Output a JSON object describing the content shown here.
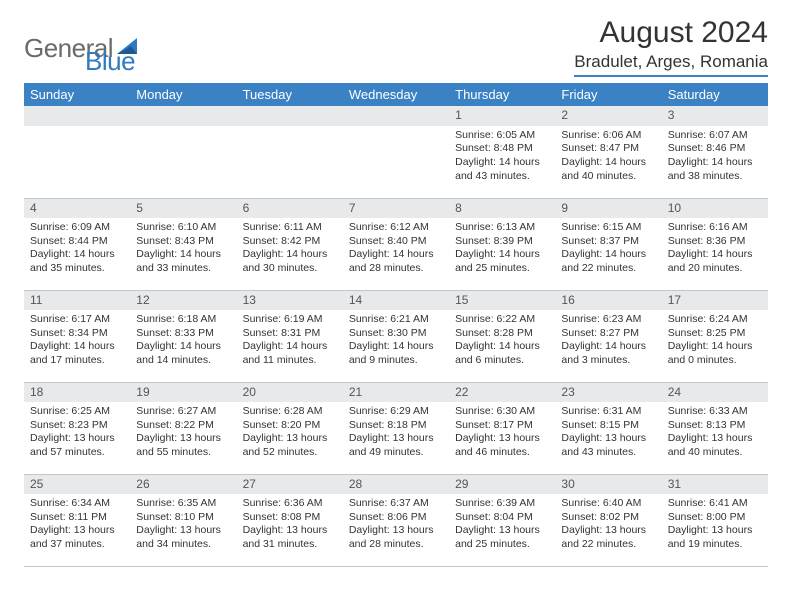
{
  "brand": {
    "part1": "General",
    "part2": "Blue"
  },
  "title": "August 2024",
  "location": "Bradulet, Arges, Romania",
  "colors": {
    "header_bg": "#3b82c4",
    "header_text": "#ffffff",
    "daynum_bg": "#e8e9eb",
    "text": "#333333",
    "logo_gray": "#6a6a6a",
    "logo_blue": "#2f7bbf"
  },
  "daysOfWeek": [
    "Sunday",
    "Monday",
    "Tuesday",
    "Wednesday",
    "Thursday",
    "Friday",
    "Saturday"
  ],
  "weeks": [
    [
      null,
      null,
      null,
      null,
      {
        "n": "1",
        "sr": "Sunrise: 6:05 AM",
        "ss": "Sunset: 8:48 PM",
        "dl": "Daylight: 14 hours and 43 minutes."
      },
      {
        "n": "2",
        "sr": "Sunrise: 6:06 AM",
        "ss": "Sunset: 8:47 PM",
        "dl": "Daylight: 14 hours and 40 minutes."
      },
      {
        "n": "3",
        "sr": "Sunrise: 6:07 AM",
        "ss": "Sunset: 8:46 PM",
        "dl": "Daylight: 14 hours and 38 minutes."
      }
    ],
    [
      {
        "n": "4",
        "sr": "Sunrise: 6:09 AM",
        "ss": "Sunset: 8:44 PM",
        "dl": "Daylight: 14 hours and 35 minutes."
      },
      {
        "n": "5",
        "sr": "Sunrise: 6:10 AM",
        "ss": "Sunset: 8:43 PM",
        "dl": "Daylight: 14 hours and 33 minutes."
      },
      {
        "n": "6",
        "sr": "Sunrise: 6:11 AM",
        "ss": "Sunset: 8:42 PM",
        "dl": "Daylight: 14 hours and 30 minutes."
      },
      {
        "n": "7",
        "sr": "Sunrise: 6:12 AM",
        "ss": "Sunset: 8:40 PM",
        "dl": "Daylight: 14 hours and 28 minutes."
      },
      {
        "n": "8",
        "sr": "Sunrise: 6:13 AM",
        "ss": "Sunset: 8:39 PM",
        "dl": "Daylight: 14 hours and 25 minutes."
      },
      {
        "n": "9",
        "sr": "Sunrise: 6:15 AM",
        "ss": "Sunset: 8:37 PM",
        "dl": "Daylight: 14 hours and 22 minutes."
      },
      {
        "n": "10",
        "sr": "Sunrise: 6:16 AM",
        "ss": "Sunset: 8:36 PM",
        "dl": "Daylight: 14 hours and 20 minutes."
      }
    ],
    [
      {
        "n": "11",
        "sr": "Sunrise: 6:17 AM",
        "ss": "Sunset: 8:34 PM",
        "dl": "Daylight: 14 hours and 17 minutes."
      },
      {
        "n": "12",
        "sr": "Sunrise: 6:18 AM",
        "ss": "Sunset: 8:33 PM",
        "dl": "Daylight: 14 hours and 14 minutes."
      },
      {
        "n": "13",
        "sr": "Sunrise: 6:19 AM",
        "ss": "Sunset: 8:31 PM",
        "dl": "Daylight: 14 hours and 11 minutes."
      },
      {
        "n": "14",
        "sr": "Sunrise: 6:21 AM",
        "ss": "Sunset: 8:30 PM",
        "dl": "Daylight: 14 hours and 9 minutes."
      },
      {
        "n": "15",
        "sr": "Sunrise: 6:22 AM",
        "ss": "Sunset: 8:28 PM",
        "dl": "Daylight: 14 hours and 6 minutes."
      },
      {
        "n": "16",
        "sr": "Sunrise: 6:23 AM",
        "ss": "Sunset: 8:27 PM",
        "dl": "Daylight: 14 hours and 3 minutes."
      },
      {
        "n": "17",
        "sr": "Sunrise: 6:24 AM",
        "ss": "Sunset: 8:25 PM",
        "dl": "Daylight: 14 hours and 0 minutes."
      }
    ],
    [
      {
        "n": "18",
        "sr": "Sunrise: 6:25 AM",
        "ss": "Sunset: 8:23 PM",
        "dl": "Daylight: 13 hours and 57 minutes."
      },
      {
        "n": "19",
        "sr": "Sunrise: 6:27 AM",
        "ss": "Sunset: 8:22 PM",
        "dl": "Daylight: 13 hours and 55 minutes."
      },
      {
        "n": "20",
        "sr": "Sunrise: 6:28 AM",
        "ss": "Sunset: 8:20 PM",
        "dl": "Daylight: 13 hours and 52 minutes."
      },
      {
        "n": "21",
        "sr": "Sunrise: 6:29 AM",
        "ss": "Sunset: 8:18 PM",
        "dl": "Daylight: 13 hours and 49 minutes."
      },
      {
        "n": "22",
        "sr": "Sunrise: 6:30 AM",
        "ss": "Sunset: 8:17 PM",
        "dl": "Daylight: 13 hours and 46 minutes."
      },
      {
        "n": "23",
        "sr": "Sunrise: 6:31 AM",
        "ss": "Sunset: 8:15 PM",
        "dl": "Daylight: 13 hours and 43 minutes."
      },
      {
        "n": "24",
        "sr": "Sunrise: 6:33 AM",
        "ss": "Sunset: 8:13 PM",
        "dl": "Daylight: 13 hours and 40 minutes."
      }
    ],
    [
      {
        "n": "25",
        "sr": "Sunrise: 6:34 AM",
        "ss": "Sunset: 8:11 PM",
        "dl": "Daylight: 13 hours and 37 minutes."
      },
      {
        "n": "26",
        "sr": "Sunrise: 6:35 AM",
        "ss": "Sunset: 8:10 PM",
        "dl": "Daylight: 13 hours and 34 minutes."
      },
      {
        "n": "27",
        "sr": "Sunrise: 6:36 AM",
        "ss": "Sunset: 8:08 PM",
        "dl": "Daylight: 13 hours and 31 minutes."
      },
      {
        "n": "28",
        "sr": "Sunrise: 6:37 AM",
        "ss": "Sunset: 8:06 PM",
        "dl": "Daylight: 13 hours and 28 minutes."
      },
      {
        "n": "29",
        "sr": "Sunrise: 6:39 AM",
        "ss": "Sunset: 8:04 PM",
        "dl": "Daylight: 13 hours and 25 minutes."
      },
      {
        "n": "30",
        "sr": "Sunrise: 6:40 AM",
        "ss": "Sunset: 8:02 PM",
        "dl": "Daylight: 13 hours and 22 minutes."
      },
      {
        "n": "31",
        "sr": "Sunrise: 6:41 AM",
        "ss": "Sunset: 8:00 PM",
        "dl": "Daylight: 13 hours and 19 minutes."
      }
    ]
  ]
}
